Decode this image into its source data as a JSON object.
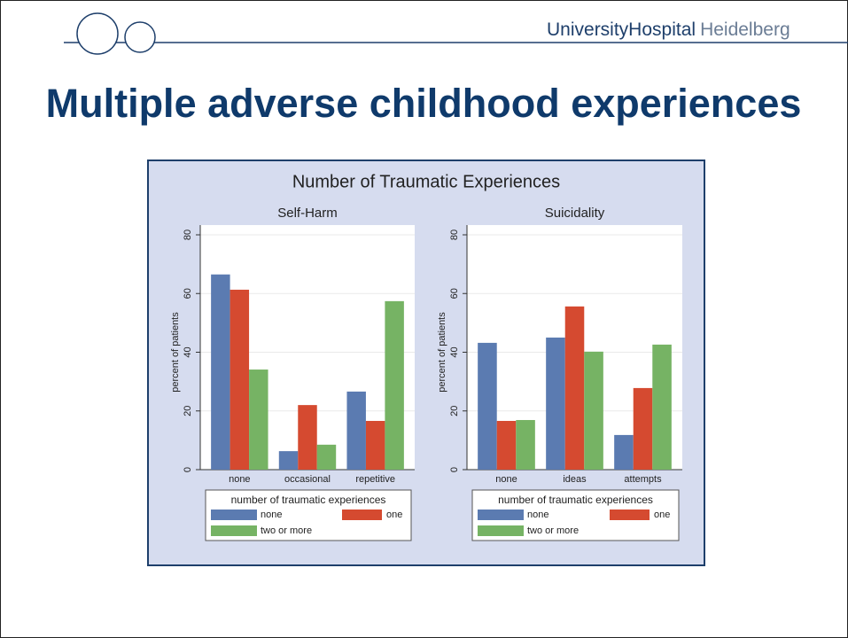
{
  "header": {
    "brand_main": "UniversityHospital",
    "brand_sub": "Heidelberg"
  },
  "title": "Multiple adverse childhood experiences",
  "figure_title": "Number of Traumatic Experiences",
  "chart_data": [
    {
      "type": "bar",
      "title": "Self-Harm",
      "y_label": "percent of patients",
      "categories": [
        "none",
        "occasional",
        "repetitive"
      ],
      "legend_title": "number of traumatic experiences",
      "series": [
        {
          "name": "none",
          "color": "#5b7bb1",
          "values": [
            66.5,
            6.3,
            26.6
          ]
        },
        {
          "name": "one",
          "color": "#d54a30",
          "values": [
            61.3,
            22,
            16.6
          ]
        },
        {
          "name": "two or more",
          "color": "#76b364",
          "values": [
            34.1,
            8.5,
            57.4
          ]
        }
      ],
      "ylim": [
        0,
        80
      ],
      "yticks": [
        0,
        20,
        40,
        60,
        80
      ],
      "grid": true
    },
    {
      "type": "bar",
      "title": "Suicidality",
      "y_label": "percent of patients",
      "categories": [
        "none",
        "ideas",
        "attempts"
      ],
      "legend_title": "number of traumatic experiences",
      "series": [
        {
          "name": "none",
          "color": "#5b7bb1",
          "values": [
            43.2,
            45,
            11.8
          ]
        },
        {
          "name": "one",
          "color": "#d54a30",
          "values": [
            16.6,
            55.6,
            27.8
          ]
        },
        {
          "name": "two or more",
          "color": "#76b364",
          "values": [
            16.9,
            40.2,
            42.6
          ]
        }
      ],
      "ylim": [
        0,
        80
      ],
      "yticks": [
        0,
        20,
        40,
        60,
        80
      ],
      "grid": true
    }
  ]
}
